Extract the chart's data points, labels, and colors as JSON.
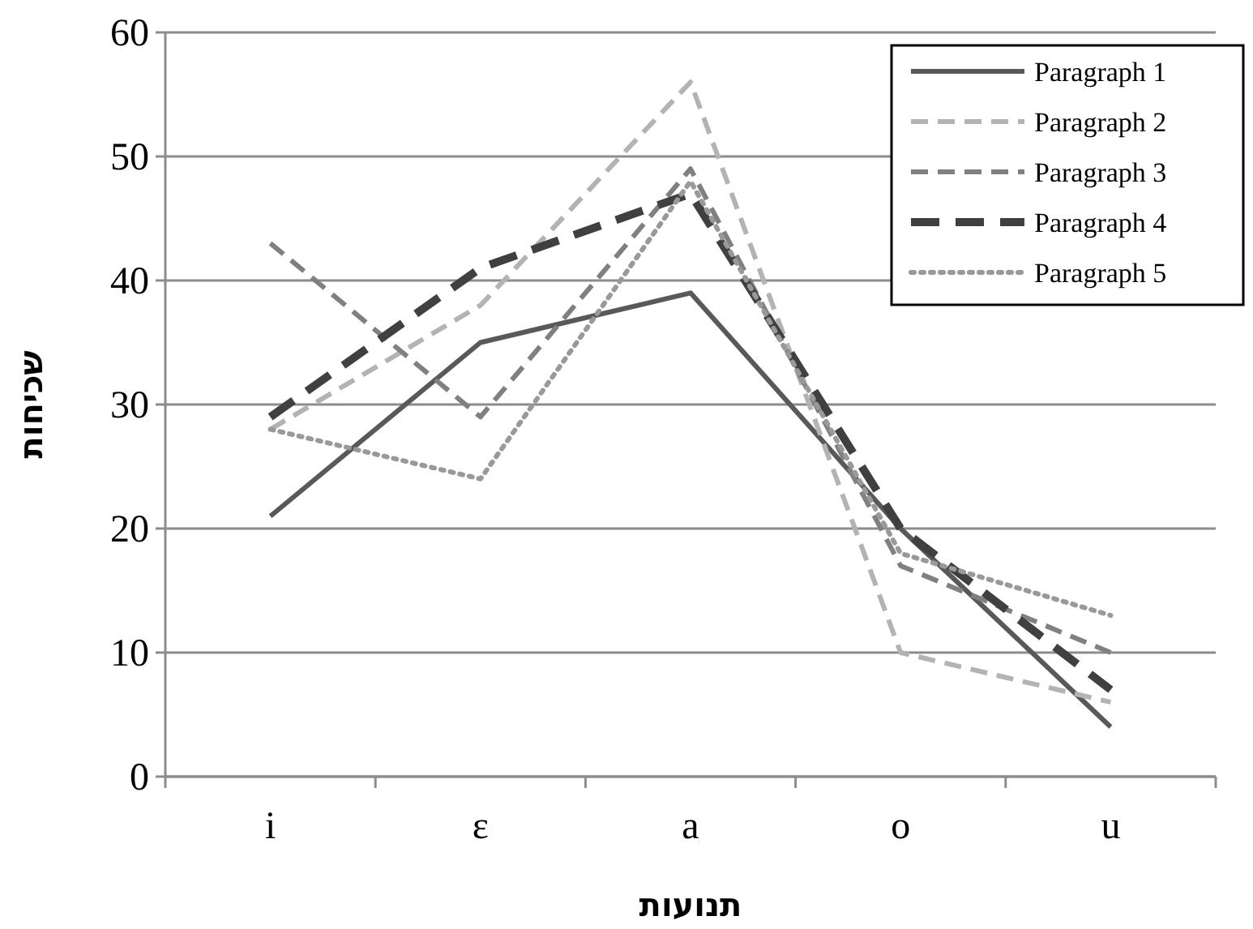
{
  "chart_data": {
    "type": "line",
    "xlabel": "תנועות",
    "ylabel": "שכיחות",
    "categories": [
      "i",
      "ɛ",
      "a",
      "o",
      "u"
    ],
    "ylim": [
      0,
      60
    ],
    "yticks": [
      0,
      10,
      20,
      30,
      40,
      50,
      60
    ],
    "grid": "y",
    "legend": "top right",
    "series": [
      {
        "name": "Paragraph 1",
        "color": "#595959",
        "line_style": "solid",
        "values": [
          21,
          35,
          39,
          20,
          4
        ]
      },
      {
        "name": "Paragraph 2",
        "color": "#b3b3b3",
        "line_style": "dashed",
        "values": [
          28,
          38,
          56,
          10,
          6
        ]
      },
      {
        "name": "Paragraph 3",
        "color": "#808080",
        "line_style": "dashed",
        "values": [
          43,
          29,
          49,
          17,
          10
        ]
      },
      {
        "name": "Paragraph 4",
        "color": "#404040",
        "line_style": "dashed",
        "values": [
          29,
          41,
          47,
          20,
          7
        ]
      },
      {
        "name": "Paragraph 5",
        "color": "#999999",
        "line_style": "dotted",
        "values": [
          28,
          24,
          48,
          18,
          13
        ]
      }
    ]
  }
}
